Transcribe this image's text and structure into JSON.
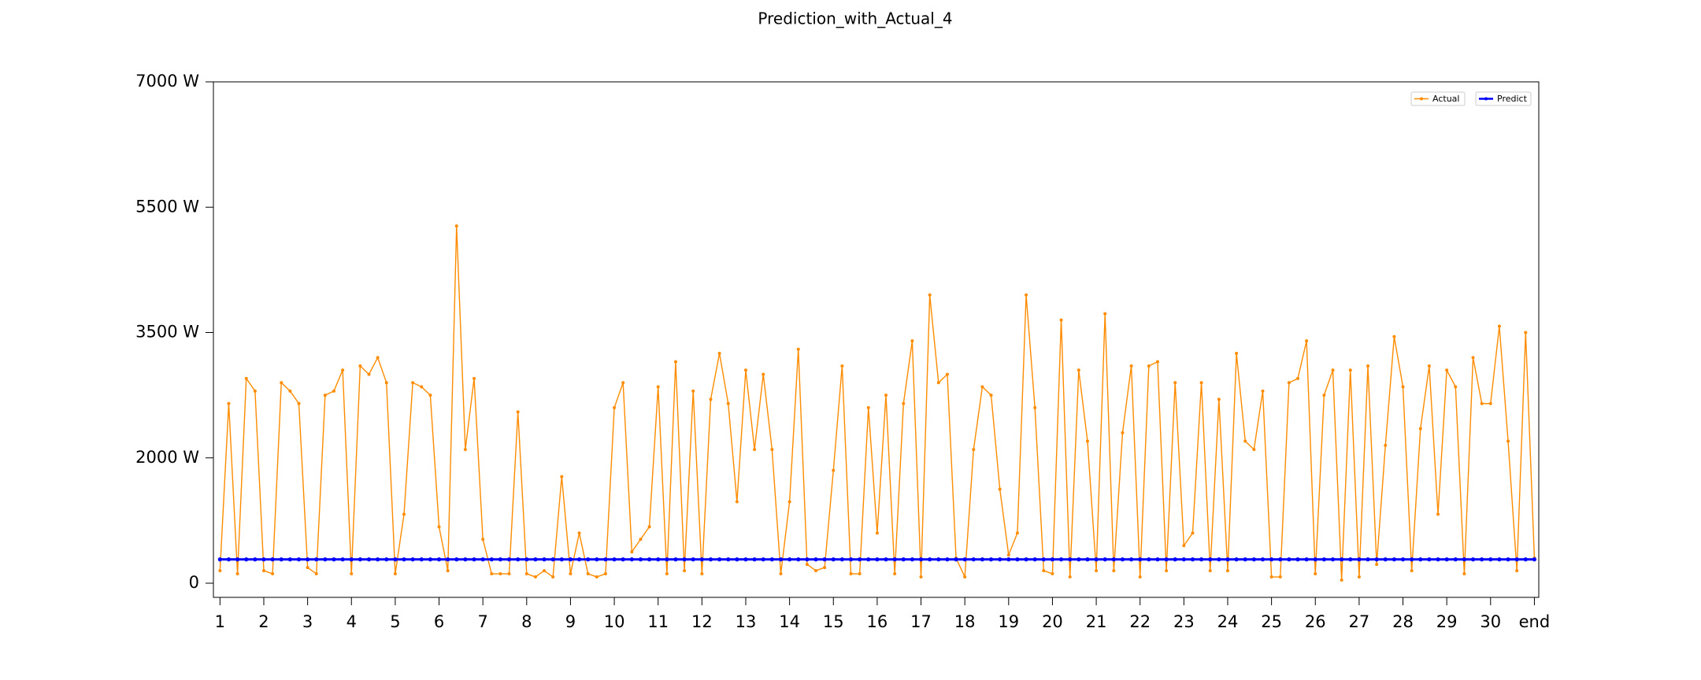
{
  "chart_data": {
    "type": "line",
    "title": "Prediction_with_Actual_4",
    "x": [
      1,
      1.2,
      1.4,
      1.6,
      1.8,
      2,
      2.2,
      2.4,
      2.6,
      2.8,
      3,
      3.2,
      3.4,
      3.6,
      3.8,
      4,
      4.2,
      4.4,
      4.6,
      4.8,
      5,
      5.2,
      5.4,
      5.6,
      5.8,
      6,
      6.2,
      6.4,
      6.6,
      6.8,
      7,
      7.2,
      7.4,
      7.6,
      7.8,
      8,
      8.2,
      8.4,
      8.6,
      8.8,
      9,
      9.2,
      9.4,
      9.6,
      9.8,
      10,
      10.2,
      10.4,
      10.6,
      10.8,
      11,
      11.2,
      11.4,
      11.6,
      11.8,
      12,
      12.2,
      12.4,
      12.6,
      12.8,
      13,
      13.2,
      13.4,
      13.6,
      13.8,
      14,
      14.2,
      14.4,
      14.6,
      14.8,
      15,
      15.2,
      15.4,
      15.6,
      15.8,
      16,
      16.2,
      16.4,
      16.6,
      16.8,
      17,
      17.2,
      17.4,
      17.6,
      17.8,
      18,
      18.2,
      18.4,
      18.6,
      18.8,
      19,
      19.2,
      19.4,
      19.6,
      19.8,
      20,
      20.2,
      20.4,
      20.6,
      20.8,
      21,
      21.2,
      21.4,
      21.6,
      21.8,
      22,
      22.2,
      22.4,
      22.6,
      22.8,
      23,
      23.2,
      23.4,
      23.6,
      23.8,
      24,
      24.2,
      24.4,
      24.6,
      24.8,
      25,
      25.2,
      25.4,
      25.6,
      25.8,
      26,
      26.2,
      26.4,
      26.6,
      26.8,
      27,
      27.2,
      27.4,
      27.6,
      27.8,
      28,
      28.2,
      28.4,
      28.6,
      28.8,
      29,
      29.2,
      29.4,
      29.6,
      29.8,
      30,
      30.2,
      30.4,
      30.6,
      30.8,
      31
    ],
    "series": [
      {
        "name": "Actual",
        "color": "#ff8c00",
        "values": [
          200,
          2650,
          150,
          2950,
          2800,
          200,
          150,
          2900,
          2800,
          2650,
          250,
          150,
          2750,
          2800,
          3050,
          150,
          3100,
          3000,
          3200,
          2900,
          150,
          1100,
          2900,
          2850,
          2750,
          900,
          200,
          5200,
          2100,
          2950,
          700,
          150,
          150,
          150,
          2550,
          150,
          100,
          200,
          100,
          1700,
          150,
          800,
          150,
          100,
          150,
          2600,
          2900,
          500,
          700,
          900,
          2850,
          150,
          3150,
          200,
          2800,
          150,
          2700,
          3250,
          2650,
          1300,
          3050,
          2100,
          3000,
          2100,
          150,
          1300,
          3300,
          300,
          200,
          250,
          1800,
          3100,
          150,
          150,
          2600,
          800,
          2750,
          150,
          2650,
          3400,
          100,
          4100,
          2900,
          3000,
          400,
          100,
          2100,
          2850,
          2750,
          1500,
          450,
          800,
          4100,
          2600,
          200,
          150,
          3700,
          100,
          3050,
          2200,
          200,
          3800,
          200,
          2300,
          3100,
          100,
          3100,
          3150,
          200,
          2900,
          600,
          800,
          2900,
          200,
          2700,
          200,
          3250,
          2200,
          2100,
          2800,
          100,
          100,
          2900,
          2950,
          3400,
          150,
          2750,
          3050,
          50,
          3050,
          100,
          3100,
          300,
          2150,
          3450,
          2850,
          200,
          2350,
          3100,
          1100,
          3050,
          2850,
          150,
          3200,
          2650,
          2650,
          3600,
          2200,
          200,
          3500,
          400
        ]
      },
      {
        "name": "Predict",
        "color": "#0000ff",
        "values": [
          380,
          380,
          380,
          380,
          380,
          380,
          380,
          380,
          380,
          380,
          380,
          380,
          380,
          380,
          380,
          380,
          380,
          380,
          380,
          380,
          380,
          380,
          380,
          380,
          380,
          380,
          380,
          380,
          380,
          380,
          380,
          380,
          380,
          380,
          380,
          380,
          380,
          380,
          380,
          380,
          380,
          380,
          380,
          380,
          380,
          380,
          380,
          380,
          380,
          380,
          380,
          380,
          380,
          380,
          380,
          380,
          380,
          380,
          380,
          380,
          380,
          380,
          380,
          380,
          380,
          380,
          380,
          380,
          380,
          380,
          380,
          380,
          380,
          380,
          380,
          380,
          380,
          380,
          380,
          380,
          380,
          380,
          380,
          380,
          380,
          380,
          380,
          380,
          380,
          380,
          380,
          380,
          380,
          380,
          380,
          380,
          380,
          380,
          380,
          380,
          380,
          380,
          380,
          380,
          380,
          380,
          380,
          380,
          380,
          380,
          380,
          380,
          380,
          380,
          380,
          380,
          380,
          380,
          380,
          380,
          380,
          380,
          380,
          380,
          380,
          380,
          380,
          380,
          380,
          380,
          380,
          380,
          380,
          380,
          380,
          380,
          380,
          380,
          380,
          380,
          380,
          380,
          380,
          380,
          380,
          380,
          380,
          380,
          380,
          380,
          380
        ]
      }
    ],
    "xlim": [
      0.85,
      31.1
    ],
    "xticks": [
      1,
      2,
      3,
      4,
      5,
      6,
      7,
      8,
      9,
      10,
      11,
      12,
      13,
      14,
      15,
      16,
      17,
      18,
      19,
      20,
      21,
      22,
      23,
      24,
      25,
      26,
      27,
      28,
      29,
      30,
      {
        "value": 31,
        "label": "end"
      }
    ],
    "ylim": [
      -226,
      7000
    ],
    "yticks": [
      0,
      {
        "value": 2000,
        "label": "2000 W"
      },
      {
        "value": 3500,
        "label": "3500 W"
      },
      {
        "value": 5500,
        "label": "5500 W"
      },
      {
        "value": 7000,
        "label": "7000 W"
      }
    ],
    "legend": "upper right"
  }
}
